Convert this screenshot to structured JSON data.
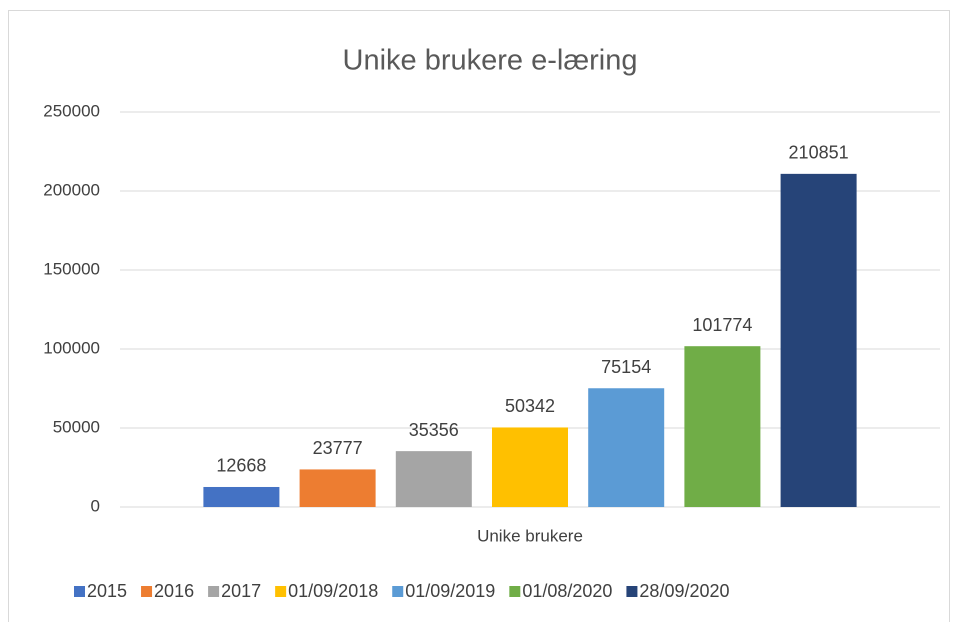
{
  "chart_data": {
    "type": "bar",
    "title": "Unike brukere e-læring",
    "categories": [
      "Unike brukere"
    ],
    "series": [
      {
        "name": "2015",
        "color": "#4472c4",
        "values": [
          12668
        ]
      },
      {
        "name": "2016",
        "color": "#ed7d31",
        "values": [
          23777
        ]
      },
      {
        "name": "2017",
        "color": "#a5a5a5",
        "values": [
          35356
        ]
      },
      {
        "name": "01/09/2018",
        "color": "#ffc000",
        "values": [
          50342
        ]
      },
      {
        "name": "01/09/2019",
        "color": "#5b9bd5",
        "values": [
          75154
        ]
      },
      {
        "name": "01/08/2020",
        "color": "#70ad47",
        "values": [
          101774
        ]
      },
      {
        "name": "28/09/2020",
        "color": "#264478",
        "values": [
          210851
        ]
      }
    ],
    "ylim": [
      0,
      250000
    ],
    "yticks": [
      0,
      50000,
      100000,
      150000,
      200000,
      250000
    ],
    "grid": true,
    "legend": "bottom"
  }
}
